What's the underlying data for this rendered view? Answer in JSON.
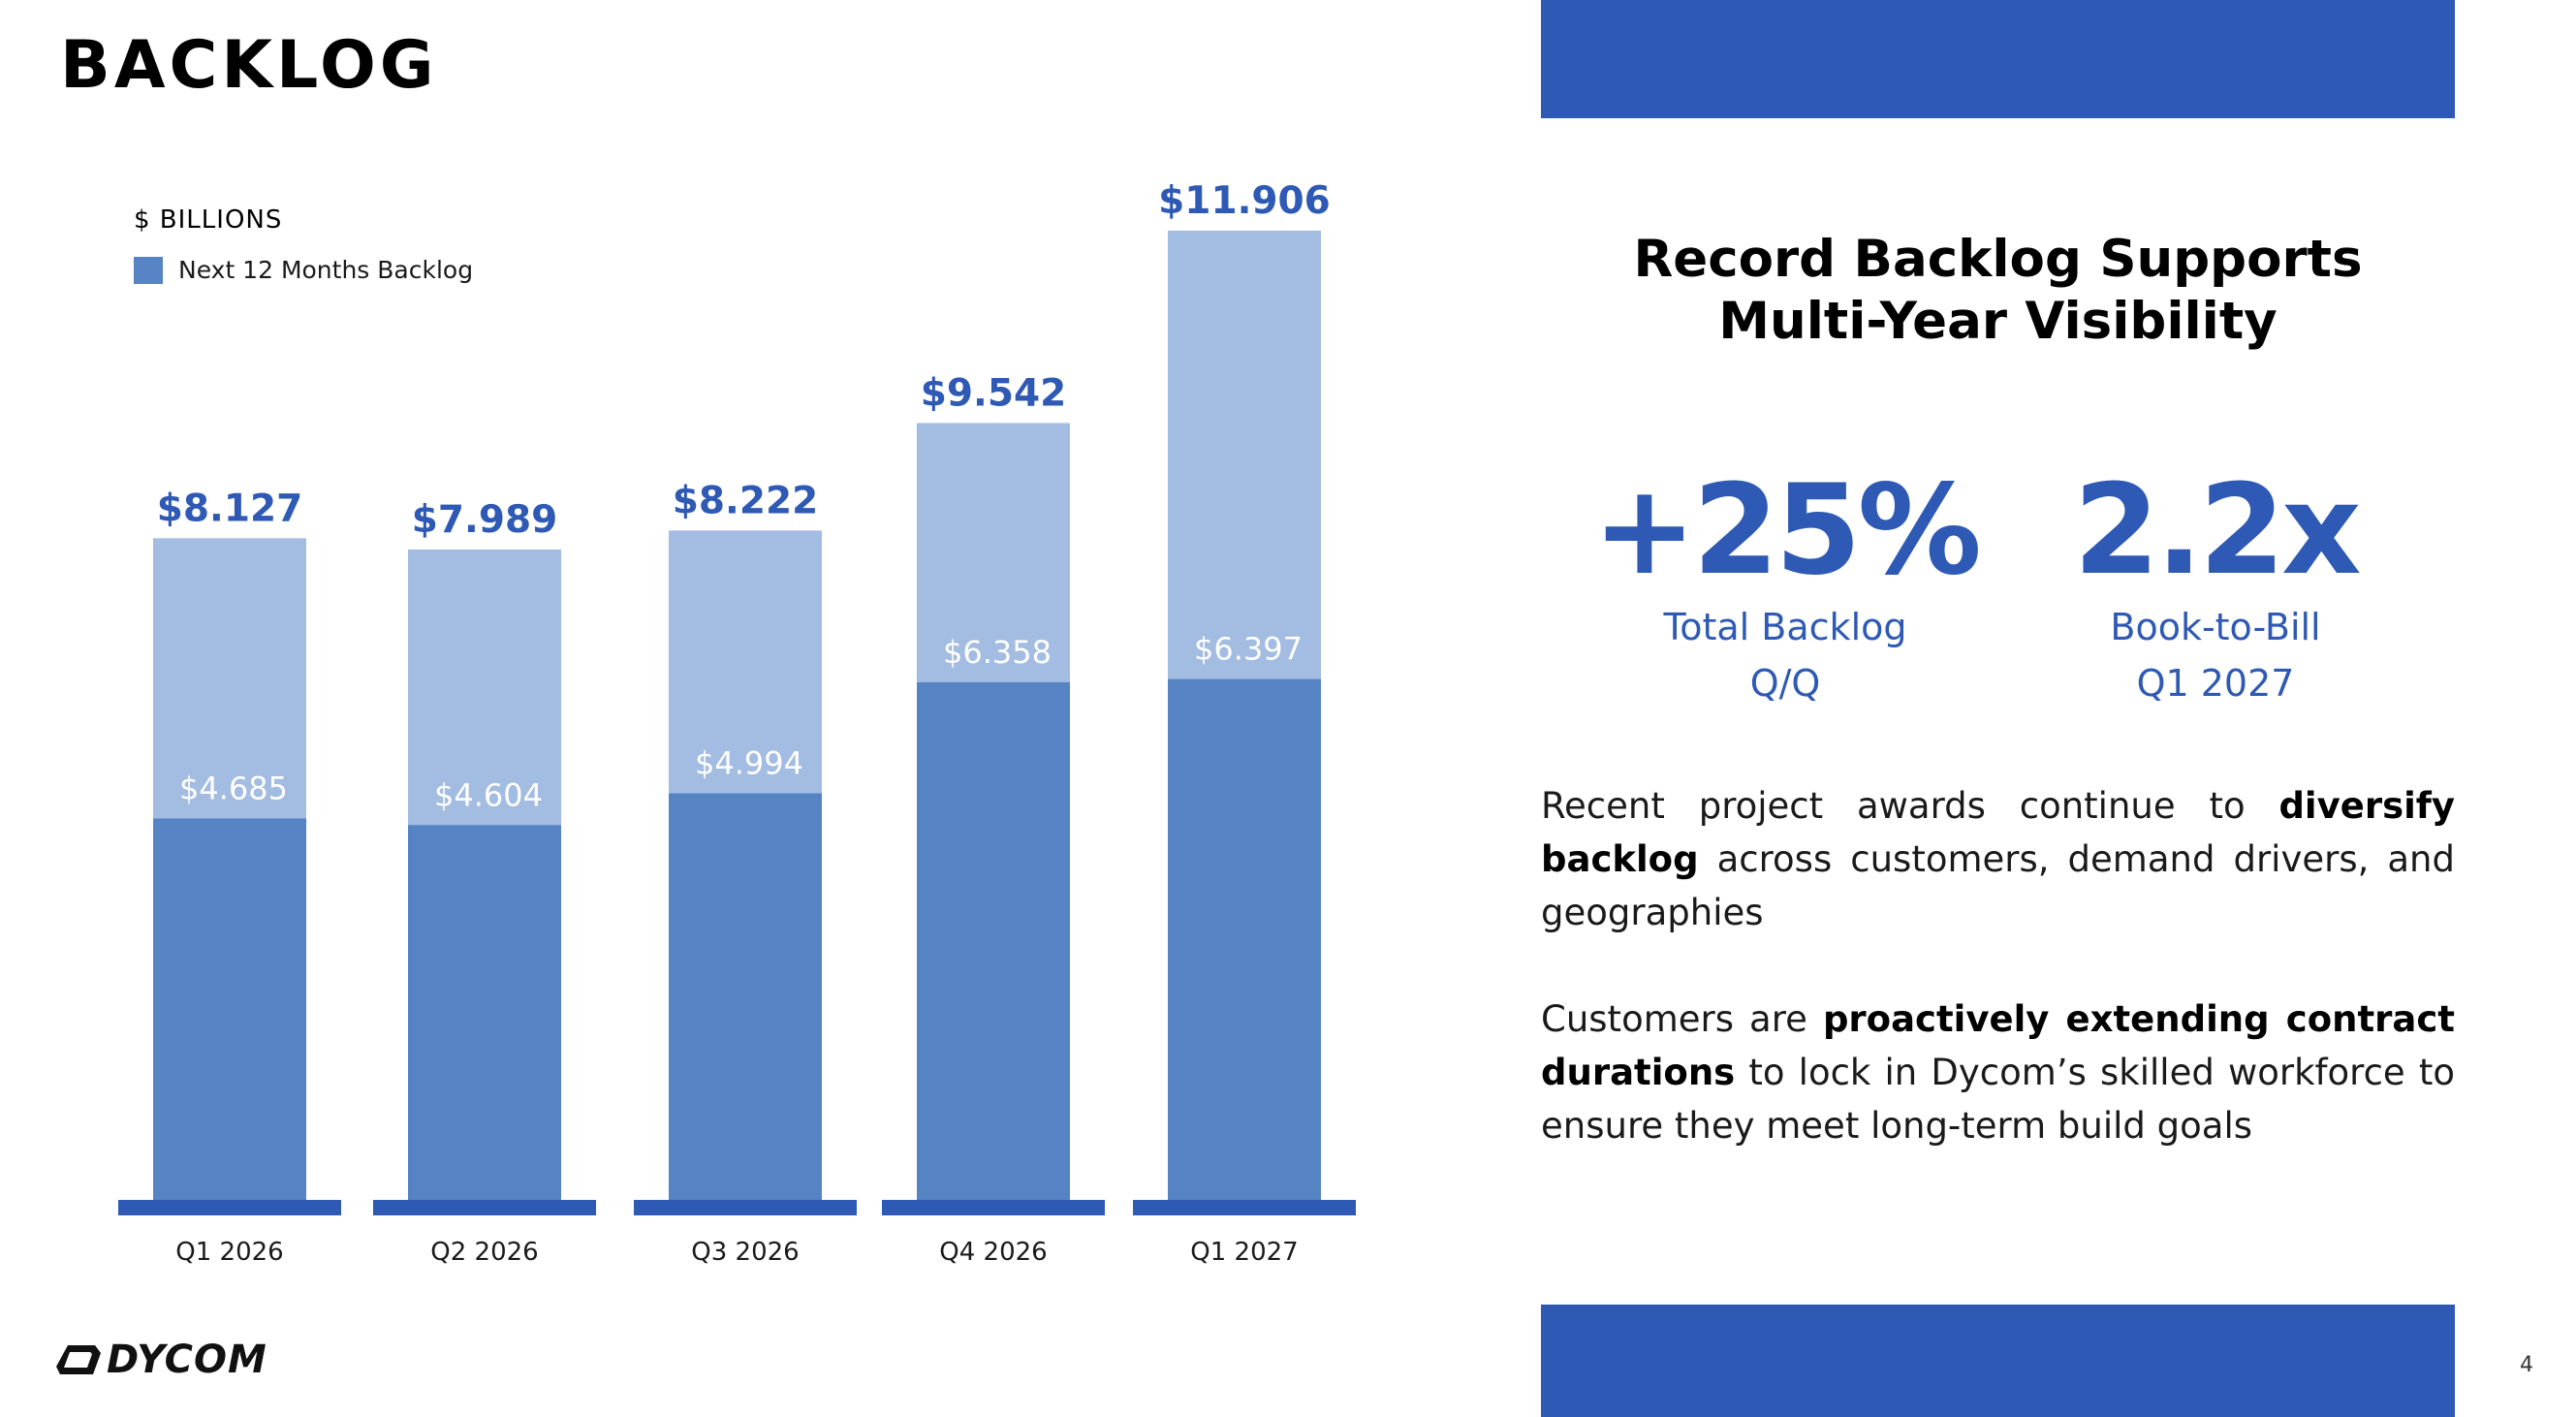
{
  "page": {
    "title": "BACKLOG",
    "page_number": "4",
    "logo_text": "DYCOM"
  },
  "colors": {
    "brand_blue": "#2E59B4",
    "next12_bar": "#5683C3",
    "total_bar": "#A3BCE1",
    "baseline": "#2E59B4",
    "inner_label": "#FFFFFF"
  },
  "chart_data": {
    "type": "bar",
    "stacked": true,
    "ylabel": "$ BILLIONS",
    "categories": [
      "Q1 2026",
      "Q2 2026",
      "Q3 2026",
      "Q4 2026",
      "Q1 2027"
    ],
    "series": [
      {
        "name": "Next 12 Months Backlog",
        "values": [
          4.685,
          4.604,
          4.994,
          6.358,
          6.397
        ]
      }
    ],
    "totals": [
      8.127,
      7.989,
      8.222,
      9.542,
      11.906
    ],
    "total_labels": [
      "$8.127",
      "$7.989",
      "$8.222",
      "$9.542",
      "$11.906"
    ],
    "inner_labels": [
      "$4.685",
      "$4.604",
      "$4.994",
      "$6.358",
      "$6.397"
    ],
    "ylim": [
      0,
      12
    ],
    "grid": false,
    "legend_position": "top-left"
  },
  "panel": {
    "headline_line1": "Record Backlog Supports",
    "headline_line2": "Multi-Year Visibility",
    "stat1": {
      "value": "+25%",
      "label_line1": "Total Backlog",
      "label_line2": "Q/Q"
    },
    "stat2": {
      "value": "2.2x",
      "label_line1": "Book-to-Bill",
      "label_line2": "Q1 2027"
    },
    "para1": {
      "text_a": "Recent project awards continue to ",
      "bold": "diversify backlog",
      "text_b": " across customers, demand drivers, and geographies"
    },
    "para2": {
      "text_a": "Customers are ",
      "bold": "proactively extending contract durations",
      "text_b": " to lock in Dycom’s skilled workforce to ensure they meet long-term build goals"
    }
  }
}
